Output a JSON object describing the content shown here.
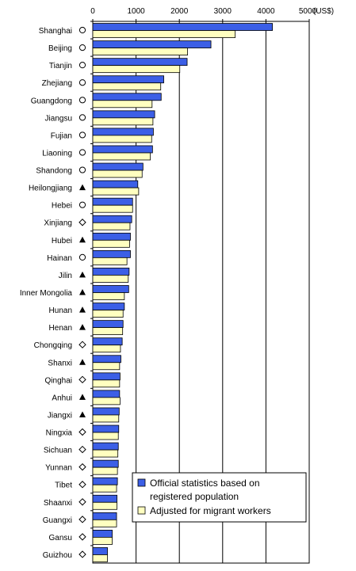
{
  "chart_data": {
    "type": "bar",
    "orientation": "horizontal",
    "unit_label": "(US$)",
    "x_ticks": [
      0,
      1000,
      2000,
      3000,
      4000,
      5000
    ],
    "xlim": [
      0,
      5000
    ],
    "grid": "vertical",
    "legend_position": "bottom-right",
    "categories": [
      "Shanghai",
      "Beijing",
      "Tianjin",
      "Zhejiang",
      "Guangdong",
      "Jiangsu",
      "Fujian",
      "Liaoning",
      "Shandong",
      "Heilongjiang",
      "Hebei",
      "Xinjiang",
      "Hubei",
      "Hainan",
      "Jilin",
      "Inner Mongolia",
      "Hunan",
      "Henan",
      "Chongqing",
      "Shanxi",
      "Qinghai",
      "Anhui",
      "Jiangxi",
      "Ningxia",
      "Sichuan",
      "Yunnan",
      "Tibet",
      "Shaanxi",
      "Guangxi",
      "Gansu",
      "Guizhou"
    ],
    "category_markers": [
      "○",
      "○",
      "○",
      "○",
      "○",
      "○",
      "○",
      "○",
      "○",
      "▲",
      "○",
      "◇",
      "▲",
      "○",
      "▲",
      "▲",
      "▲",
      "▲",
      "◇",
      "▲",
      "◇",
      "▲",
      "▲",
      "◇",
      "◇",
      "◇",
      "◇",
      "◇",
      "◇",
      "◇",
      "◇"
    ],
    "series": [
      {
        "name": "Official statistics based on registered population",
        "color": "#3c5fe6",
        "values": [
          4150,
          2730,
          2180,
          1640,
          1580,
          1430,
          1400,
          1380,
          1160,
          1040,
          920,
          900,
          870,
          870,
          840,
          830,
          730,
          700,
          680,
          650,
          630,
          620,
          610,
          600,
          590,
          590,
          570,
          560,
          550,
          450,
          340
        ]
      },
      {
        "name": "Adjusted for migrant workers",
        "color": "#ffffc0",
        "values": [
          3290,
          2190,
          2010,
          1570,
          1370,
          1390,
          1360,
          1330,
          1140,
          1060,
          920,
          860,
          850,
          790,
          820,
          730,
          700,
          690,
          640,
          620,
          620,
          630,
          600,
          590,
          580,
          570,
          550,
          560,
          550,
          450,
          340
        ]
      }
    ]
  }
}
